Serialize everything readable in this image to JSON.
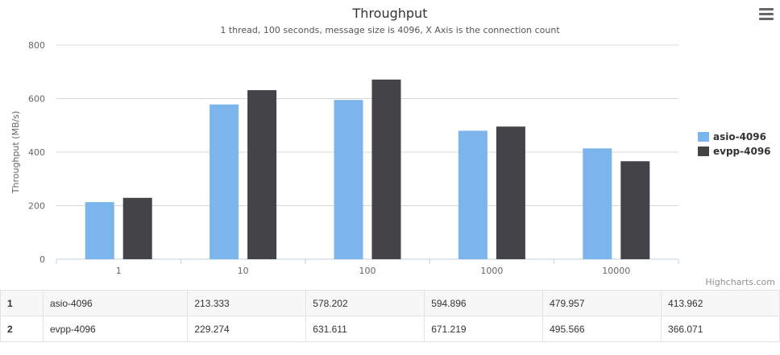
{
  "chart_data": {
    "type": "bar",
    "title": "Throughput",
    "subtitle": "1 thread, 100 seconds, message size is 4096, X Axis is the connection count",
    "ylabel": "Throughput (MB/s)",
    "xlabel": "",
    "categories": [
      "1",
      "10",
      "100",
      "1000",
      "10000"
    ],
    "ylim": [
      0,
      800
    ],
    "yticks": [
      0,
      200,
      400,
      600,
      800
    ],
    "grid": true,
    "legend": "right",
    "series": [
      {
        "name": "asio-4096",
        "color": "#7cb5ec",
        "values": [
          213.333,
          578.202,
          594.896,
          479.957,
          413.962
        ]
      },
      {
        "name": "evpp-4096",
        "color": "#434348",
        "values": [
          229.274,
          631.611,
          671.219,
          495.566,
          366.071
        ]
      }
    ]
  },
  "credits": "Highcharts.com",
  "menu_icon": "hamburger-menu-icon",
  "table": {
    "rows": [
      {
        "index": "1",
        "name": "asio-4096",
        "cells": [
          "213.333",
          "578.202",
          "594.896",
          "479.957",
          "413.962"
        ]
      },
      {
        "index": "2",
        "name": "evpp-4096",
        "cells": [
          "229.274",
          "631.611",
          "671.219",
          "495.566",
          "366.071"
        ]
      }
    ]
  }
}
